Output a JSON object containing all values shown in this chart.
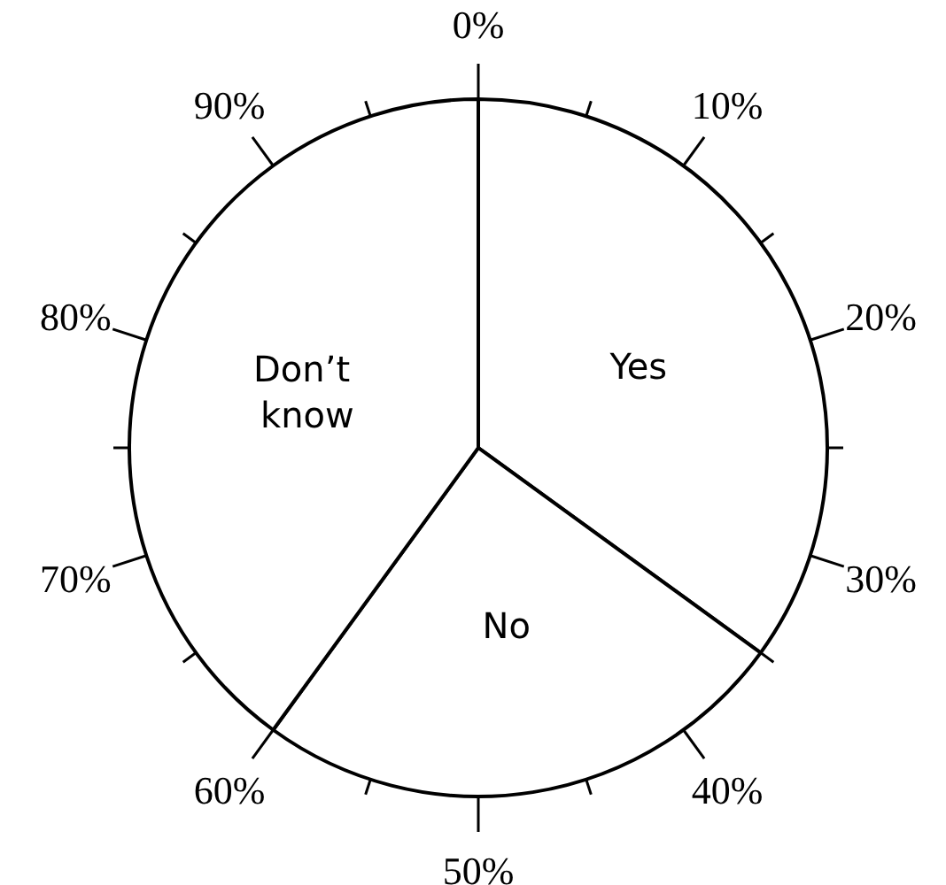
{
  "chart_data": {
    "type": "pie",
    "categories": [
      "Yes",
      "No",
      "Don’t know"
    ],
    "values": [
      35,
      25,
      40
    ],
    "colors": [
      "#ffffff",
      "#ffffff",
      "#ffffff"
    ],
    "annotations": [
      "0%",
      "10%",
      "20%",
      "30%",
      "40%",
      "50%",
      "60%",
      "70%",
      "80%",
      "90%"
    ],
    "legend": false
  }
}
